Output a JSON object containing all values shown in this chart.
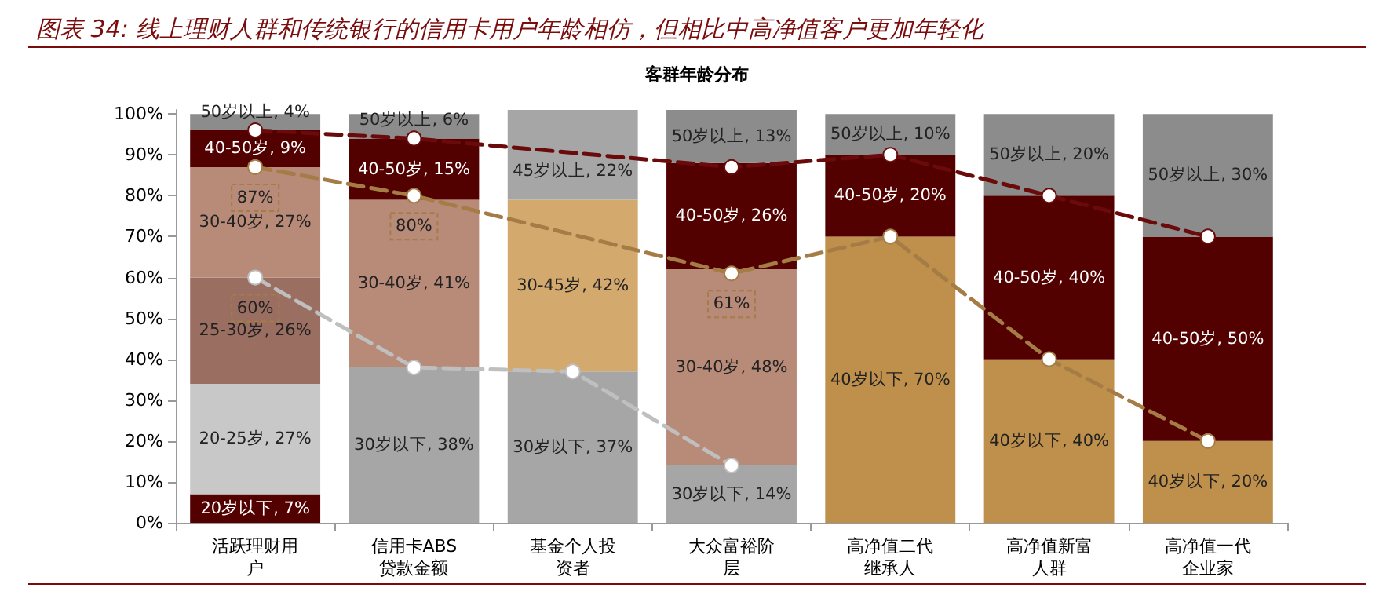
{
  "chart_data": {
    "type": "bar",
    "title": "图表 34: 线上理财人群和传统银行的信用卡用户年龄相仿，但相比中高净值客户更加年轻化",
    "subtitle": "客群年龄分布",
    "categories": [
      "活跃理财用户",
      "信用卡ABS贷款金额",
      "基金个人投资者",
      "大众富裕阶层",
      "高净值二代继承人",
      "高净值新富人群",
      "高净值一代企业家"
    ],
    "stacked": true,
    "grid": false,
    "ylim": [
      0,
      101
    ],
    "yticks": [
      {
        "value": 0,
        "label": "0%"
      },
      {
        "value": 10,
        "label": "10%"
      },
      {
        "value": 20,
        "label": "20%"
      },
      {
        "value": 30,
        "label": "30%"
      },
      {
        "value": 40,
        "label": "40%"
      },
      {
        "value": 50,
        "label": "50%"
      },
      {
        "value": 60,
        "label": "60%"
      },
      {
        "value": 70,
        "label": "70%"
      },
      {
        "value": 80,
        "label": "80%"
      },
      {
        "value": 90,
        "label": "90%"
      },
      {
        "value": 100,
        "label": "100%"
      }
    ],
    "series": [
      {
        "values": [
          7,
          38,
          37,
          14,
          70,
          40,
          20
        ],
        "colors": [
          "#520000",
          "#a6a6a6",
          "#a6a6a6",
          "#a6a6a6",
          "#bf8f4c",
          "#bf8f4c",
          "#bf8f4c"
        ],
        "value_labels": [
          "20岁以下, 7%",
          "30岁以下, 38%",
          "30岁以下, 37%",
          "30岁以下, 14%",
          "40岁以下, 70%",
          "40岁以下, 40%",
          "40岁以下, 20%"
        ]
      },
      {
        "values": [
          27,
          41,
          42,
          48,
          20,
          40,
          50
        ],
        "colors": [
          "#c8c8c8",
          "#b88a78",
          "#d3a96e",
          "#b88a78",
          "#520000",
          "#520000",
          "#520000"
        ],
        "value_labels": [
          "20-25岁, 27%",
          "30-40岁, 41%",
          "30-45岁, 42%",
          "30-40岁, 48%",
          "40-50岁, 20%",
          "40-50岁, 40%",
          "40-50岁, 50%"
        ]
      },
      {
        "values": [
          26,
          15,
          22,
          26,
          10,
          20,
          30
        ],
        "colors": [
          "#9a6f62",
          "#520000",
          "#a6a6a6",
          "#520000",
          "#8c8c8c",
          "#8c8c8c",
          "#8c8c8c"
        ],
        "value_labels": [
          "25-30岁, 26%",
          "40-50岁, 15%",
          "45岁以上, 22%",
          "40-50岁, 26%",
          "50岁以上, 10%",
          "50岁以上, 20%",
          "50岁以上, 30%"
        ]
      },
      {
        "values": [
          27,
          6,
          null,
          13,
          null,
          null,
          null
        ],
        "colors": [
          "#b88a78",
          "#8c8c8c",
          null,
          "#8c8c8c",
          null,
          null,
          null
        ],
        "value_labels": [
          "30-40岁, 27%",
          "50岁以上, 6%",
          null,
          "50岁以上, 13%",
          null,
          null,
          null
        ]
      },
      {
        "values": [
          9,
          null,
          null,
          null,
          null,
          null,
          null
        ],
        "colors": [
          "#520000",
          null,
          null,
          null,
          null,
          null,
          null
        ],
        "value_labels": [
          "40-50岁, 9%",
          null,
          null,
          null,
          null,
          null,
          null
        ]
      },
      {
        "values": [
          4,
          null,
          null,
          null,
          null,
          null,
          null
        ],
        "colors": [
          "#8c8c8c",
          null,
          null,
          null,
          null,
          null,
          null
        ],
        "value_labels": [
          "50岁以上, 4%",
          null,
          null,
          null,
          null,
          null,
          null
        ]
      },
      {
        "type": "line",
        "color": "#6b0a0a",
        "line_style": "dashed",
        "marker": "circle",
        "values": [
          96,
          94,
          null,
          87,
          90,
          80,
          70
        ]
      },
      {
        "type": "line",
        "color": "#a57c45",
        "line_style": "dashed",
        "marker": "circle",
        "values": [
          87,
          80,
          null,
          61,
          70,
          40,
          20
        ]
      },
      {
        "type": "line",
        "color": "#bfbfbf",
        "line_style": "dashed",
        "marker": "circle",
        "values": [
          60,
          38,
          37,
          14,
          null,
          null,
          null
        ]
      }
    ],
    "annotations": [
      {
        "text": "87%",
        "x": "活跃理财用户",
        "y": 87
      },
      {
        "text": "80%",
        "x": "信用卡ABS贷款金额",
        "y": 80
      },
      {
        "text": "60%",
        "x": "活跃理财用户",
        "y": 60
      },
      {
        "text": "61%",
        "x": "大众富裕阶层",
        "y": 61
      }
    ]
  }
}
